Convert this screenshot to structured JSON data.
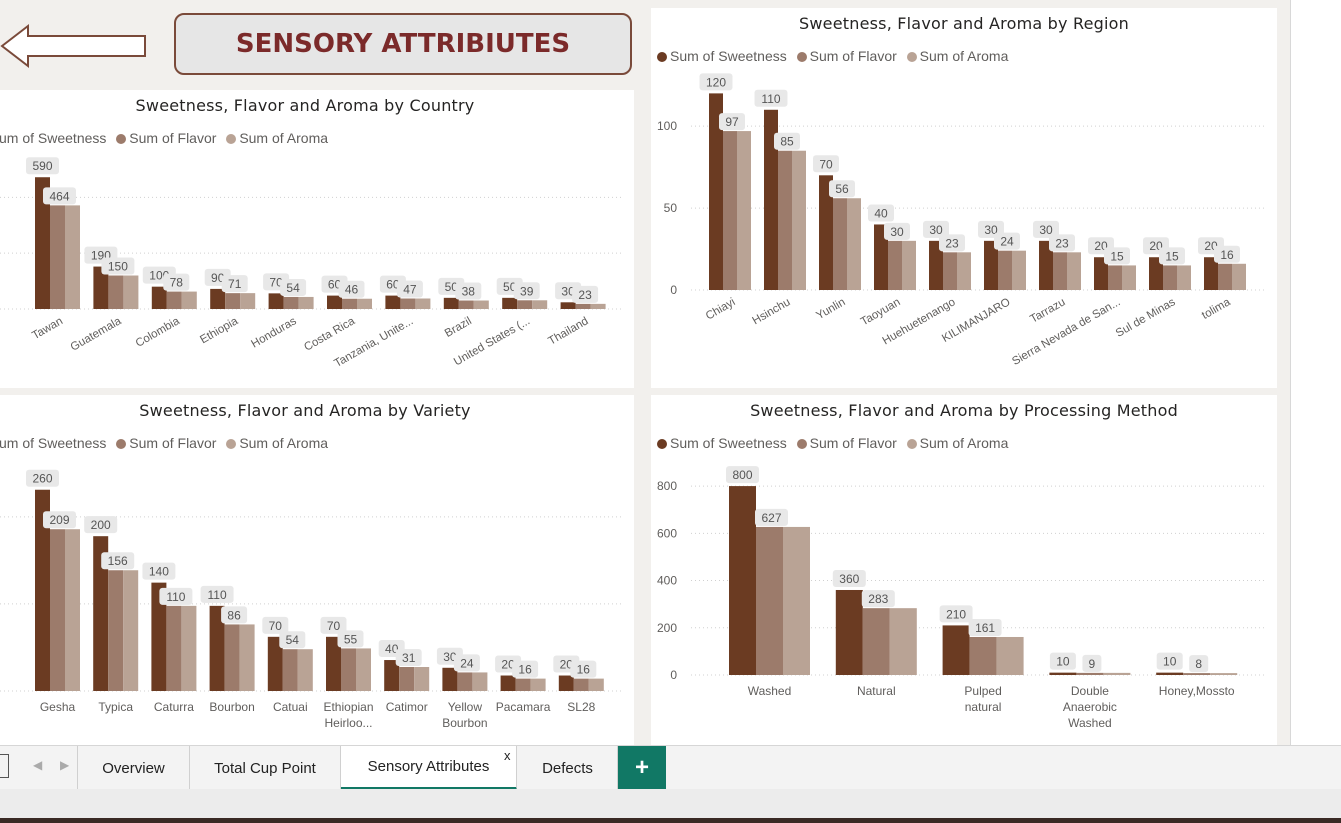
{
  "header": {
    "title": "SENSORY ATTRIBIUTES"
  },
  "colors": {
    "sweetness": "#6b3b22",
    "flavor": "#9c7b6b",
    "aroma": "#b9a395"
  },
  "legend": {
    "sweetness": "Sum of Sweetness",
    "flavor": "Sum of Flavor",
    "aroma": "Sum of Aroma",
    "sweetness_cut": "um of Sweetness"
  },
  "tabs": [
    {
      "label": "Overview"
    },
    {
      "label": "Total Cup Point"
    },
    {
      "label": "Sensory Attributes"
    },
    {
      "label": "Defects"
    }
  ],
  "tab_close": "x",
  "tab_add": "+",
  "chart_data": [
    {
      "id": "country",
      "type": "bar",
      "title": "Sweetness, Flavor and Aroma by Country",
      "categories": [
        "Tawan",
        "Guatemala",
        "Colombia",
        "Ethiopia",
        "Honduras",
        "Costa Rica",
        "Tanzania, Unite...",
        "Brazil",
        "United States (...",
        "Thailand"
      ],
      "series": [
        {
          "name": "Sum of Sweetness",
          "values": [
            590,
            190,
            100,
            90,
            70,
            60,
            60,
            50,
            50,
            30
          ]
        },
        {
          "name": "Sum of Flavor",
          "values": [
            464,
            150,
            78,
            71,
            54,
            46,
            47,
            38,
            39,
            23
          ]
        },
        {
          "name": "Sum of Aroma",
          "values": [
            464,
            150,
            78,
            71,
            54,
            46,
            47,
            38,
            39,
            23
          ]
        }
      ],
      "ylim": [
        0,
        600
      ]
    },
    {
      "id": "region",
      "type": "bar",
      "title": "Sweetness, Flavor and Aroma by Region",
      "categories": [
        "Chiayi",
        "Hsinchu",
        "Yunlin",
        "Taoyuan",
        "Huehuetenango",
        "KILIMANJARO",
        "Tarrazu",
        "Sierra Nevada de San...",
        "Sul de Minas",
        "tolima"
      ],
      "series": [
        {
          "name": "Sum of Sweetness",
          "values": [
            120,
            110,
            70,
            40,
            30,
            30,
            30,
            20,
            20,
            20
          ]
        },
        {
          "name": "Sum of Flavor",
          "values": [
            97,
            85,
            56,
            30,
            23,
            24,
            23,
            15,
            15,
            16
          ]
        },
        {
          "name": "Sum of Aroma",
          "values": [
            97,
            85,
            56,
            30,
            23,
            24,
            23,
            15,
            15,
            16
          ]
        }
      ],
      "yticks": [
        "0",
        "50",
        "100"
      ],
      "ylim": [
        0,
        130
      ]
    },
    {
      "id": "variety",
      "type": "bar",
      "title": "Sweetness, Flavor and Aroma by Variety",
      "categories": [
        "Gesha",
        "Typica",
        "Caturra",
        "Bourbon",
        "Catuai",
        "Ethiopian Heirloo...",
        "Catimor",
        "Yellow Bourbon",
        "Pacamara",
        "SL28"
      ],
      "series": [
        {
          "name": "Sum of Sweetness",
          "values": [
            260,
            200,
            140,
            110,
            70,
            70,
            40,
            30,
            20,
            20
          ]
        },
        {
          "name": "Sum of Flavor",
          "values": [
            209,
            156,
            110,
            86,
            54,
            55,
            31,
            24,
            16,
            16
          ]
        },
        {
          "name": "Sum of Aroma",
          "values": [
            209,
            156,
            110,
            86,
            54,
            55,
            31,
            24,
            16,
            16
          ]
        }
      ],
      "ylim": [
        0,
        270
      ]
    },
    {
      "id": "process",
      "type": "bar",
      "title": "Sweetness, Flavor and Aroma by Processing Method",
      "categories": [
        "Washed",
        "Natural",
        "Pulped natural",
        "Double Anaerobic Washed",
        "Honey,Mossto"
      ],
      "series": [
        {
          "name": "Sum of Sweetness",
          "values": [
            800,
            360,
            210,
            10,
            10
          ]
        },
        {
          "name": "Sum of Flavor",
          "values": [
            627,
            283,
            161,
            9,
            8
          ]
        },
        {
          "name": "Sum of Aroma",
          "values": [
            627,
            283,
            161,
            9,
            8
          ]
        }
      ],
      "yticks": [
        "0",
        "200",
        "400",
        "600",
        "800"
      ],
      "ylim": [
        0,
        830
      ]
    }
  ]
}
